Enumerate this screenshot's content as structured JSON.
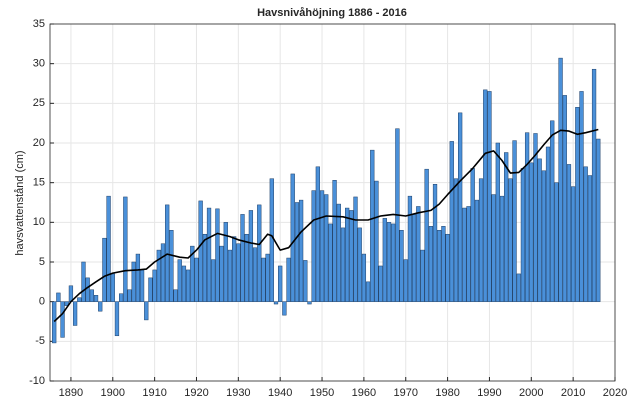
{
  "chart_data": {
    "type": "bar",
    "title": "Havsnivåhöjning 1886 - 2016",
    "y_label": "havsvattenstånd (cm)",
    "xlim": [
      1885,
      2020
    ],
    "xticks": [
      1890,
      1900,
      1910,
      1920,
      1930,
      1940,
      1950,
      1960,
      1970,
      1980,
      1990,
      2000,
      2010,
      2020
    ],
    "ylim": [
      -10,
      35
    ],
    "yticks": [
      -10,
      -5,
      0,
      5,
      10,
      15,
      20,
      25,
      30,
      35
    ],
    "grid": true,
    "series": [
      {
        "type": "bar",
        "color": "#4a90d9",
        "x": [
          1886,
          1887,
          1888,
          1889,
          1890,
          1891,
          1892,
          1893,
          1894,
          1895,
          1896,
          1897,
          1898,
          1899,
          1900,
          1901,
          1902,
          1903,
          1904,
          1905,
          1906,
          1907,
          1908,
          1909,
          1910,
          1911,
          1912,
          1913,
          1914,
          1915,
          1916,
          1917,
          1918,
          1919,
          1920,
          1921,
          1922,
          1923,
          1924,
          1925,
          1926,
          1927,
          1928,
          1929,
          1930,
          1931,
          1932,
          1933,
          1934,
          1935,
          1936,
          1937,
          1938,
          1939,
          1940,
          1941,
          1942,
          1943,
          1944,
          1945,
          1946,
          1947,
          1948,
          1949,
          1950,
          1951,
          1952,
          1953,
          1954,
          1955,
          1956,
          1957,
          1958,
          1959,
          1960,
          1961,
          1962,
          1963,
          1964,
          1965,
          1966,
          1967,
          1968,
          1969,
          1970,
          1971,
          1972,
          1973,
          1974,
          1975,
          1976,
          1977,
          1978,
          1979,
          1980,
          1981,
          1982,
          1983,
          1984,
          1985,
          1986,
          1987,
          1988,
          1989,
          1990,
          1991,
          1992,
          1993,
          1994,
          1995,
          1996,
          1997,
          1998,
          1999,
          2000,
          2001,
          2002,
          2003,
          2004,
          2005,
          2006,
          2007,
          2008,
          2009,
          2010,
          2011,
          2012,
          2013,
          2014,
          2015,
          2016
        ],
        "values": [
          -5.2,
          1.1,
          -4.5,
          -0.5,
          2.0,
          -3.0,
          0.5,
          5.0,
          3.0,
          1.5,
          0.8,
          -1.2,
          8.0,
          13.3,
          3.5,
          -4.3,
          1.0,
          13.2,
          1.5,
          5.0,
          6.0,
          4.0,
          -2.3,
          3.0,
          4.0,
          6.5,
          7.3,
          12.2,
          9.0,
          1.5,
          5.3,
          4.5,
          4.0,
          7.0,
          5.5,
          12.7,
          8.5,
          11.8,
          5.3,
          11.7,
          7.0,
          10.0,
          6.5,
          8.2,
          7.3,
          11.0,
          8.5,
          11.5,
          6.8,
          12.2,
          5.5,
          6.0,
          15.5,
          -0.3,
          4.5,
          -1.7,
          5.5,
          16.1,
          12.5,
          12.8,
          5.2,
          -0.3,
          14.0,
          17.0,
          14.0,
          13.5,
          9.8,
          15.3,
          12.3,
          9.3,
          11.8,
          11.5,
          13.2,
          9.3,
          6.0,
          2.5,
          19.1,
          15.2,
          4.5,
          10.5,
          10.0,
          9.8,
          21.8,
          9.0,
          5.3,
          13.3,
          11.0,
          12.0,
          6.5,
          16.7,
          9.5,
          14.8,
          9.0,
          9.5,
          8.5,
          20.2,
          15.5,
          23.8,
          11.8,
          12.0,
          16.8,
          12.8,
          15.5,
          26.7,
          26.5,
          13.5,
          20.0,
          13.3,
          18.8,
          15.5,
          20.3,
          3.5,
          16.8,
          21.3,
          17.5,
          21.2,
          18.0,
          16.5,
          19.5,
          22.8,
          15.0,
          30.7,
          26.0,
          17.3,
          14.5,
          24.5,
          26.5,
          17.0,
          15.9,
          29.3,
          20.5
        ]
      },
      {
        "type": "line",
        "color": "#000000",
        "x": [
          1886,
          1888,
          1890,
          1892,
          1894,
          1896,
          1898,
          1900,
          1903,
          1906,
          1908,
          1910,
          1913,
          1916,
          1918,
          1920,
          1922,
          1925,
          1928,
          1930,
          1933,
          1935,
          1937,
          1938,
          1940,
          1942,
          1945,
          1948,
          1951,
          1955,
          1958,
          1961,
          1964,
          1967,
          1970,
          1973,
          1976,
          1978,
          1980,
          1983,
          1986,
          1989,
          1991,
          1993,
          1995,
          1997,
          1999,
          2001,
          2003,
          2005,
          2007,
          2009,
          2011,
          2013,
          2016
        ],
        "values": [
          -2.5,
          -1.5,
          0,
          1,
          1.8,
          2.5,
          3.2,
          3.6,
          3.9,
          4.0,
          4.1,
          5.0,
          6.0,
          5.6,
          5.5,
          6.5,
          7.8,
          8.6,
          8.2,
          7.8,
          7.4,
          7.2,
          8.5,
          8.3,
          6.5,
          6.8,
          8.8,
          10.3,
          10.8,
          10.7,
          10.3,
          10.3,
          10.8,
          11.0,
          10.8,
          11.2,
          11.5,
          12.3,
          13.5,
          15.2,
          16.8,
          18.7,
          19.0,
          17.8,
          16.2,
          16.3,
          17.3,
          18.5,
          19.8,
          21.0,
          21.6,
          21.5,
          21.1,
          21.3,
          21.7
        ]
      }
    ]
  }
}
